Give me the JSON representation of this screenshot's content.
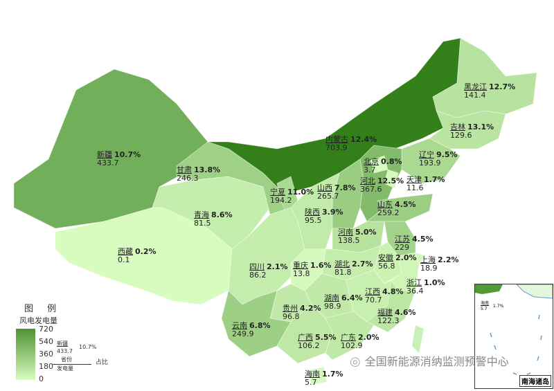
{
  "legend": {
    "title": "图 例",
    "subtitle": "风电发电量",
    "ticks": [
      "720",
      "540",
      "360",
      "180",
      "0"
    ],
    "scale": {
      "min": 0,
      "max": 720,
      "low_color": "#d8fbc0",
      "high_color": "#2f7d17"
    },
    "example_name": "新疆",
    "example_value": "433.7",
    "example_pct": "10.7%",
    "key_name": "省份",
    "key_value": "发电量",
    "key_pct": "占比"
  },
  "provinces": [
    {
      "id": "xinjiang",
      "name": "新疆",
      "value": 433.7,
      "pct": "10.7%"
    },
    {
      "id": "xizang",
      "name": "西藏",
      "value": 0.1,
      "pct": "0.2%"
    },
    {
      "id": "qinghai",
      "name": "青海",
      "value": 81.5,
      "pct": "8.6%"
    },
    {
      "id": "gansu",
      "name": "甘肃",
      "value": 246.3,
      "pct": "13.8%"
    },
    {
      "id": "neimenggu",
      "name": "内蒙古",
      "value": 703.9,
      "pct": "12.4%"
    },
    {
      "id": "heilongjiang",
      "name": "黑龙江",
      "value": 141.4,
      "pct": "12.7%"
    },
    {
      "id": "jilin",
      "name": "吉林",
      "value": 129.6,
      "pct": "13.1%"
    },
    {
      "id": "liaoning",
      "name": "辽宁",
      "value": 193.9,
      "pct": "9.5%"
    },
    {
      "id": "hebei",
      "name": "河北",
      "value": 367.6,
      "pct": "12.5%"
    },
    {
      "id": "beijing",
      "name": "北京",
      "value": 3.7,
      "pct": "0.8%"
    },
    {
      "id": "tianjin",
      "name": "天津",
      "value": 11.6,
      "pct": "1.7%"
    },
    {
      "id": "shanxi",
      "name": "山西",
      "value": 265.7,
      "pct": "7.8%"
    },
    {
      "id": "ningxia",
      "name": "宁夏",
      "value": 194.2,
      "pct": "11.0%"
    },
    {
      "id": "shaanxi",
      "name": "陕西",
      "value": 95.5,
      "pct": "3.9%"
    },
    {
      "id": "shandong",
      "name": "山东",
      "value": 259.2,
      "pct": "4.5%"
    },
    {
      "id": "henan",
      "name": "河南",
      "value": 138.5,
      "pct": "5.0%"
    },
    {
      "id": "jiangsu",
      "name": "江苏",
      "value": 229,
      "pct": "4.5%"
    },
    {
      "id": "anhui",
      "name": "安徽",
      "value": 56.8,
      "pct": "2.0%"
    },
    {
      "id": "shanghai",
      "name": "上海",
      "value": 18.9,
      "pct": "2.2%"
    },
    {
      "id": "zhejiang",
      "name": "浙江",
      "value": 36.4,
      "pct": "1.0%"
    },
    {
      "id": "sichuan",
      "name": "四川",
      "value": 86.2,
      "pct": "2.1%"
    },
    {
      "id": "chongqing",
      "name": "重庆",
      "value": 13.8,
      "pct": "1.6%"
    },
    {
      "id": "hubei",
      "name": "湖北",
      "value": 81.8,
      "pct": "2.7%"
    },
    {
      "id": "hunan",
      "name": "湖南",
      "value": 98.9,
      "pct": "6.4%"
    },
    {
      "id": "jiangxi",
      "name": "江西",
      "value": 70.7,
      "pct": "4.8%"
    },
    {
      "id": "fujian",
      "name": "福建",
      "value": 122.3,
      "pct": "4.6%"
    },
    {
      "id": "guizhou",
      "name": "贵州",
      "value": 96.8,
      "pct": "4.2%"
    },
    {
      "id": "yunnan",
      "name": "云南",
      "value": 249.9,
      "pct": "6.8%"
    },
    {
      "id": "guangxi",
      "name": "广西",
      "value": 106.2,
      "pct": "5.5%"
    },
    {
      "id": "guangdong",
      "name": "广东",
      "value": 102.9,
      "pct": "2.0%"
    },
    {
      "id": "hainan",
      "name": "海南",
      "value": 5.7,
      "pct": "1.7%"
    }
  ],
  "inset": {
    "caption": "南海诸岛",
    "label_name": "海南",
    "label_value": "5.7",
    "label_pct": "1.7%"
  },
  "watermark": "全国新能源消纳监测预警中心"
}
